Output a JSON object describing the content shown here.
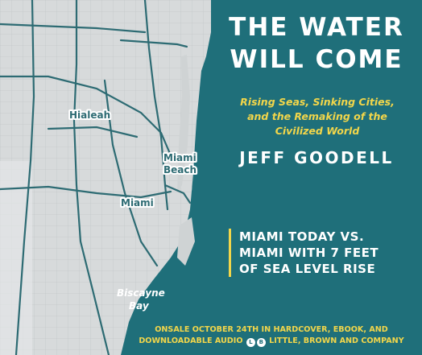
{
  "book": {
    "title_line1": "THE WATER",
    "title_line2": "WILL COME",
    "subtitle_line1": "Rising Seas, Sinking Cities,",
    "subtitle_line2": "and the Remaking of the",
    "subtitle_line3": "Civilized World",
    "author": "JEFF GOODELL"
  },
  "comparison": {
    "line1": "MIAMI TODAY VS.",
    "line2": "MIAMI WITH 7 FEET",
    "line3": "OF SEA LEVEL RISE"
  },
  "map_labels": {
    "hialeah": "Hialeah",
    "miami_beach_line1": "Miami",
    "miami_beach_line2": "Beach",
    "miami": "Miami",
    "bay_line1": "Biscayne",
    "bay_line2": "Bay"
  },
  "footer": {
    "line1": "ONSALE OCTOBER 24TH IN HARDCOVER, EBOOK, AND",
    "line2_part1": "DOWNLOADABLE AUDIO",
    "logo_left": "L",
    "logo_right": "B",
    "publisher": "LITTLE, BROWN AND COMPANY"
  },
  "colors": {
    "water": "#1f6f7a",
    "land": "#d7dadb",
    "road": "#2d6b73",
    "accent": "#f2d64a"
  }
}
